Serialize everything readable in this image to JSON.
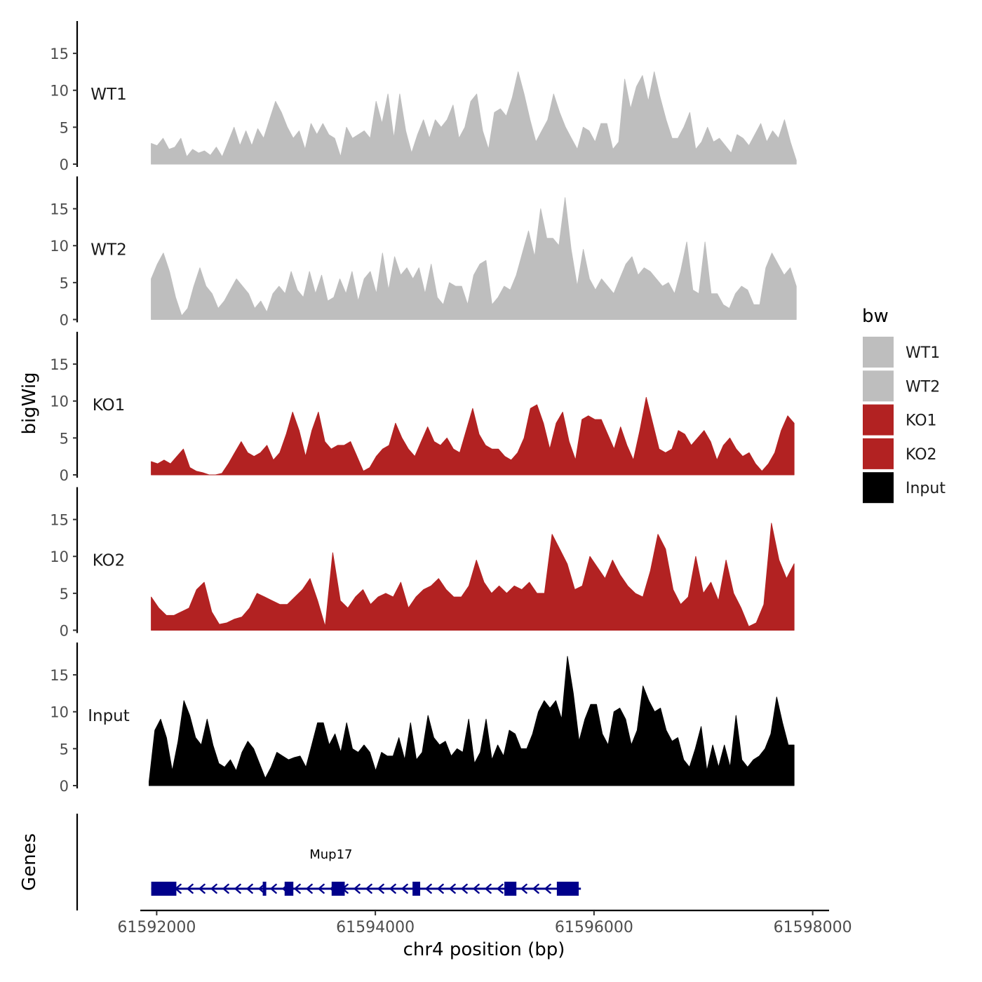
{
  "chart_data": {
    "type": "area",
    "y_axis_title": "bigWig",
    "genes_axis_title": "Genes",
    "xlabel": "chr4 position (bp)",
    "xlim": [
      61591850,
      61598150
    ],
    "x_ticks": [
      61592000,
      61594000,
      61596000,
      61598000
    ],
    "x_tick_labels": [
      "61592000",
      "61594000",
      "61596000",
      "61598000"
    ],
    "ylim": [
      0,
      19
    ],
    "y_ticks": [
      0,
      5,
      10,
      15
    ],
    "y_tick_labels": [
      "0",
      "5",
      "10",
      "15"
    ],
    "legend": {
      "title": "bw",
      "position": "right",
      "entries": [
        {
          "label": "WT1",
          "color": "#bebebe"
        },
        {
          "label": "WT2",
          "color": "#bebebe"
        },
        {
          "label": "KO1",
          "color": "#b22222"
        },
        {
          "label": "KO2",
          "color": "#b22222"
        },
        {
          "label": "Input",
          "color": "#000000"
        }
      ]
    },
    "series": [
      {
        "name": "WT1",
        "color": "#bebebe",
        "x_start": 61591950,
        "x_end": 61597850,
        "values": [
          2.8,
          2.5,
          3.5,
          2.0,
          2.3,
          3.5,
          1.0,
          2.0,
          1.5,
          1.8,
          1.2,
          2.3,
          1.0,
          3.0,
          5.0,
          2.5,
          4.5,
          2.5,
          4.8,
          3.5,
          6.0,
          8.5,
          7.0,
          5.0,
          3.5,
          4.5,
          2.0,
          5.5,
          4.0,
          5.5,
          4.0,
          3.5,
          1.0,
          5.0,
          3.5,
          4.0,
          4.5,
          3.5,
          8.5,
          5.5,
          9.5,
          3.5,
          9.5,
          4.5,
          1.5,
          4.0,
          6.0,
          3.5,
          6.0,
          5.0,
          6.0,
          8.0,
          3.5,
          5.0,
          8.5,
          9.5,
          4.5,
          2.0,
          7.0,
          7.5,
          6.5,
          9.0,
          12.5,
          9.5,
          6.0,
          3.0,
          4.5,
          6.0,
          9.5,
          7.0,
          5.0,
          3.5,
          2.0,
          5.0,
          4.5,
          3.0,
          5.5,
          5.5,
          2.0,
          3.0,
          11.5,
          7.5,
          10.5,
          12.0,
          8.5,
          12.5,
          9.0,
          6.0,
          3.5,
          3.5,
          5.0,
          7.0,
          2.0,
          3.0,
          5.0,
          3.0,
          3.5,
          2.5,
          1.5,
          4.0,
          3.5,
          2.5,
          4.0,
          5.5,
          3.0,
          4.5,
          3.5,
          6.0,
          3.0,
          0.5
        ],
        "label": "WT1"
      },
      {
        "name": "WT2",
        "color": "#bebebe",
        "x_start": 61591950,
        "x_end": 61597850,
        "values": [
          5.5,
          7.5,
          9.0,
          6.5,
          3.0,
          0.5,
          1.5,
          4.5,
          7.0,
          4.5,
          3.5,
          1.5,
          2.5,
          4.0,
          5.5,
          4.5,
          3.5,
          1.5,
          2.5,
          1.0,
          3.5,
          4.5,
          3.5,
          6.5,
          4.0,
          3.0,
          6.5,
          3.5,
          6.0,
          2.5,
          3.0,
          5.5,
          3.5,
          6.5,
          2.5,
          5.5,
          6.5,
          3.5,
          9.0,
          4.0,
          8.5,
          6.0,
          7.0,
          5.5,
          7.0,
          3.5,
          7.5,
          3.0,
          2.0,
          5.0,
          4.5,
          4.5,
          2.0,
          6.0,
          7.5,
          8.0,
          2.0,
          3.0,
          4.5,
          4.0,
          6.0,
          9.0,
          12.0,
          8.5,
          15.0,
          11.0,
          11.0,
          10.0,
          16.5,
          9.5,
          4.5,
          9.5,
          5.5,
          4.0,
          5.5,
          4.5,
          3.5,
          5.5,
          7.5,
          8.5,
          6.0,
          7.0,
          6.5,
          5.5,
          4.5,
          5.0,
          3.5,
          6.5,
          10.5,
          4.0,
          3.5,
          10.5,
          3.5,
          3.5,
          2.0,
          1.5,
          3.5,
          4.5,
          4.0,
          2.0,
          2.0,
          7.0,
          9.0,
          7.5,
          6.0,
          7.0,
          4.5
        ],
        "label": "WT2"
      },
      {
        "name": "KO1",
        "color": "#b22222",
        "x_start": 61591950,
        "x_end": 61597830,
        "values": [
          1.8,
          1.5,
          2.0,
          1.5,
          2.5,
          3.5,
          1.0,
          0.5,
          0.3,
          0.0,
          0.0,
          0.2,
          1.5,
          3.0,
          4.5,
          3.0,
          2.5,
          3.0,
          4.0,
          2.0,
          3.0,
          5.5,
          8.5,
          6.0,
          2.5,
          6.0,
          8.5,
          4.5,
          3.5,
          4.0,
          4.0,
          4.5,
          2.5,
          0.5,
          1.0,
          2.5,
          3.5,
          4.0,
          7.0,
          5.0,
          3.5,
          2.5,
          4.5,
          6.5,
          4.5,
          4.0,
          5.0,
          3.5,
          3.0,
          6.0,
          9.0,
          5.5,
          4.0,
          3.5,
          3.5,
          2.5,
          2.0,
          3.0,
          5.0,
          9.0,
          9.5,
          7.0,
          3.5,
          7.0,
          8.5,
          4.5,
          2.0,
          7.5,
          8.0,
          7.5,
          7.5,
          5.5,
          3.5,
          6.5,
          4.0,
          2.0,
          6.0,
          10.5,
          7.0,
          3.5,
          3.0,
          3.5,
          6.0,
          5.5,
          4.0,
          5.0,
          6.0,
          4.5,
          2.0,
          4.0,
          5.0,
          3.5,
          2.5,
          3.0,
          1.5,
          0.5,
          1.5,
          3.0,
          6.0,
          8.0,
          7.0
        ],
        "label": "KO1"
      },
      {
        "name": "KO2",
        "color": "#b22222",
        "x_start": 61591950,
        "x_end": 61597830,
        "values": [
          4.5,
          3.0,
          2.0,
          2.0,
          2.5,
          3.0,
          5.5,
          6.5,
          2.5,
          0.8,
          1.0,
          1.5,
          1.8,
          3.0,
          5.0,
          4.5,
          4.0,
          3.5,
          3.5,
          4.5,
          5.5,
          7.0,
          4.0,
          0.5,
          10.5,
          4.0,
          3.0,
          4.5,
          5.5,
          3.5,
          4.5,
          5.0,
          4.5,
          6.5,
          3.0,
          4.5,
          5.5,
          6.0,
          7.0,
          5.5,
          4.5,
          4.5,
          6.0,
          9.5,
          6.5,
          5.0,
          6.0,
          5.0,
          6.0,
          5.5,
          6.5,
          5.0,
          5.0,
          13.0,
          11.0,
          9.0,
          5.5,
          6.0,
          10.0,
          8.5,
          7.0,
          9.5,
          7.5,
          6.0,
          5.0,
          4.5,
          8.0,
          13.0,
          11.0,
          5.5,
          3.5,
          4.5,
          10.0,
          5.0,
          6.5,
          4.0,
          9.5,
          5.0,
          3.0,
          0.5,
          1.0,
          3.5,
          14.5,
          9.5,
          7.0,
          9.0
        ],
        "label": "KO2"
      },
      {
        "name": "Input",
        "color": "#000000",
        "x_start": 61591930,
        "x_end": 61597830,
        "values": [
          0.5,
          7.5,
          9.0,
          6.5,
          2.0,
          6.0,
          11.5,
          9.5,
          6.5,
          5.5,
          9.0,
          5.5,
          3.0,
          2.5,
          3.5,
          2.0,
          4.5,
          6.0,
          5.0,
          3.0,
          1.0,
          2.5,
          4.5,
          4.0,
          3.5,
          3.8,
          4.0,
          2.5,
          5.5,
          8.5,
          8.5,
          5.5,
          7.0,
          4.5,
          8.5,
          5.0,
          4.5,
          5.5,
          4.5,
          2.0,
          4.5,
          4.0,
          4.0,
          6.5,
          3.5,
          8.5,
          3.5,
          4.5,
          9.5,
          6.5,
          5.5,
          6.0,
          4.0,
          5.0,
          4.5,
          9.0,
          3.0,
          4.5,
          9.0,
          3.5,
          5.5,
          4.0,
          7.5,
          7.0,
          5.0,
          5.0,
          7.0,
          10.0,
          11.5,
          10.5,
          11.5,
          9.0,
          17.5,
          12.5,
          6.0,
          9.0,
          11.0,
          11.0,
          7.0,
          5.5,
          10.0,
          10.5,
          9.0,
          5.5,
          7.5,
          13.5,
          11.5,
          10.0,
          10.5,
          7.5,
          6.0,
          6.5,
          3.5,
          2.5,
          5.0,
          8.0,
          2.0,
          5.5,
          2.5,
          5.5,
          2.5,
          9.5,
          3.5,
          2.5,
          3.5,
          4.0,
          5.0,
          7.0,
          12.0,
          8.5,
          5.5,
          5.5
        ],
        "label": "Input"
      }
    ],
    "genes": {
      "strand": "-",
      "color": "#00008b",
      "transcript": {
        "name": "Mup17",
        "start": 61591950,
        "end": 61595880
      },
      "exons": [
        {
          "start": 61591950,
          "end": 61592180
        },
        {
          "start": 61592970,
          "end": 61593000
        },
        {
          "start": 61593170,
          "end": 61593250
        },
        {
          "start": 61593600,
          "end": 61593720
        },
        {
          "start": 61594340,
          "end": 61594410
        },
        {
          "start": 61595180,
          "end": 61595290
        },
        {
          "start": 61595660,
          "end": 61595860
        }
      ]
    }
  }
}
